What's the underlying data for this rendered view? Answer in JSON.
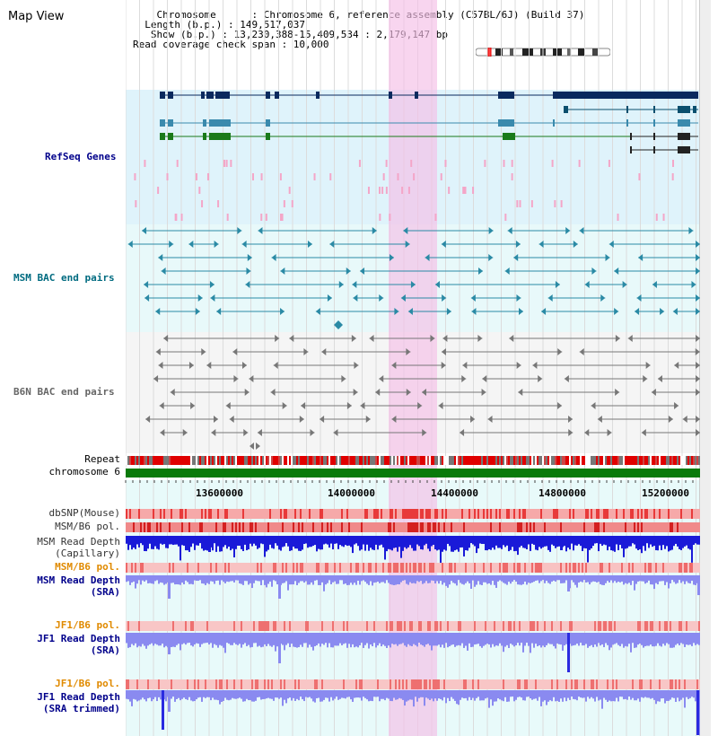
{
  "header": {
    "title": "Map View",
    "info_lines": [
      "    Chromosome      : Chromosome 6, reference assembly (C57BL/6J) (Build 37)",
      "  Length (b.p.) : 149,517,037",
      "   Show (b.p.) : 13,230,388-15,409,534 : 2,179,147 bp",
      "Read coverage check span : 10,000"
    ]
  },
  "tracks": {
    "refseq": "RefSeq Genes",
    "msm_bac": "MSM BAC end pairs",
    "b6n_bac": "B6N BAC end pairs",
    "repeat": "Repeat",
    "chromosome": "chromosome 6",
    "dbsnp": "dbSNP(Mouse)",
    "msm_b6_pol": "MSM/B6 pol.",
    "msm_depth_cap": "MSM Read Depth",
    "msm_depth_cap_sub": "(Capillary)",
    "msm_b6_pol2": "MSM/B6 pol.",
    "msm_depth_sra": "MSM Read Depth",
    "msm_depth_sra_sub": "(SRA)",
    "jf1_b6_pol": "JF1/B6 pol.",
    "jf1_depth_sra": "JF1 Read Depth",
    "jf1_depth_sra_sub": "(SRA)",
    "jf1_b6_pol2": "JF1/B6 pol.",
    "jf1_depth_trim": "JF1 Read Depth",
    "jf1_depth_trim_sub": "(SRA trimmed)"
  },
  "axis": {
    "ticks": [
      "13600000",
      "14000000",
      "14400000",
      "14800000",
      "15200000"
    ]
  },
  "colors": {
    "refseq_bg": "#dff3fb",
    "msm_bg": "#e8f9fa",
    "b6n_bg": "#f4f4f4",
    "highlight": "#f7d6ef",
    "label_blue": "#00008b",
    "label_orange": "#e08a00",
    "label_teal": "#006b80"
  }
}
